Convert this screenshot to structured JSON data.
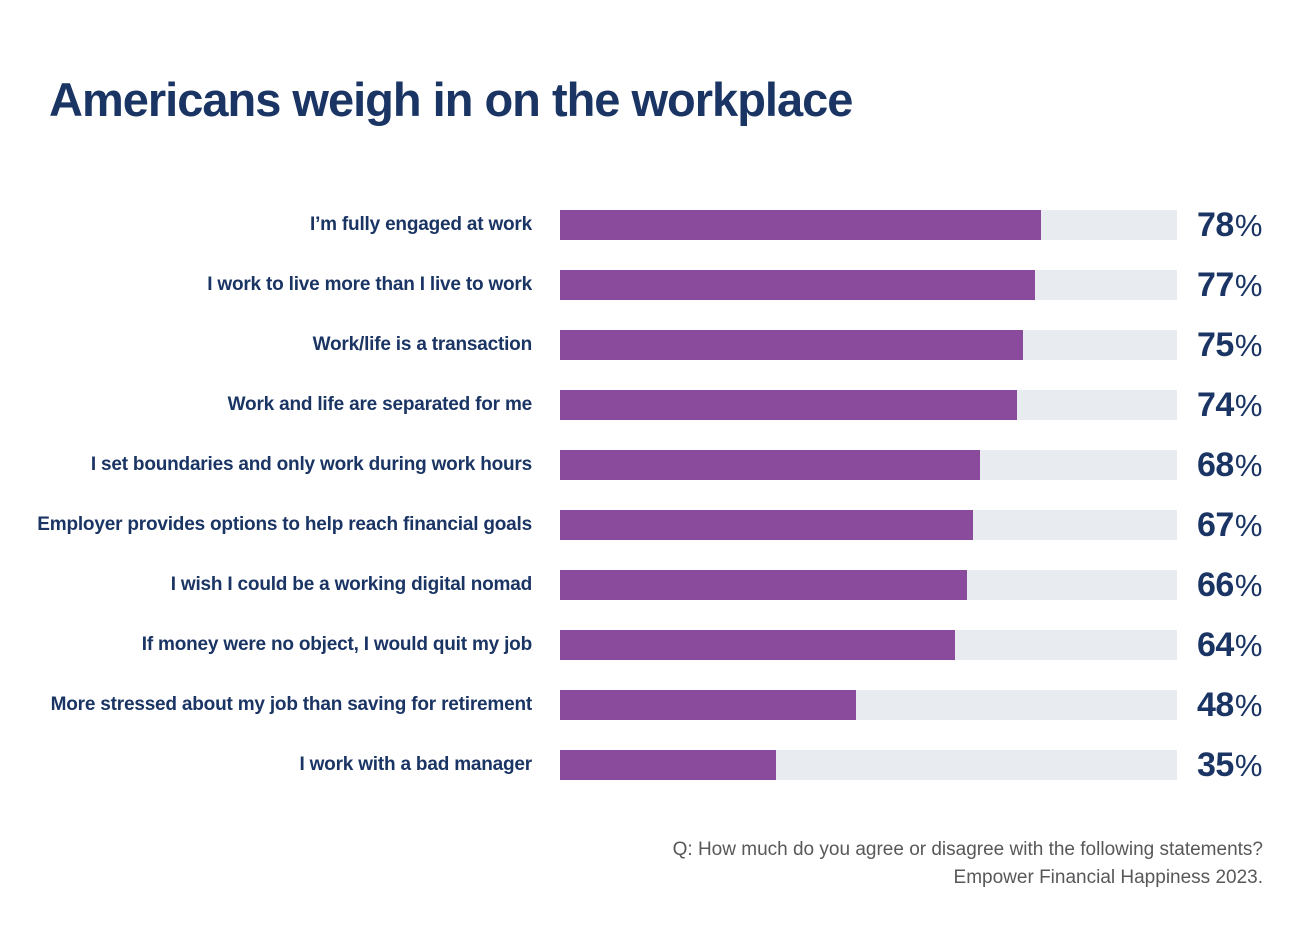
{
  "title": "Americans weigh in on the workplace",
  "chart_data": {
    "type": "bar",
    "orientation": "horizontal",
    "title": "Americans weigh in on the workplace",
    "categories": [
      "I’m fully engaged at work",
      "I work to live more than I live to work",
      "Work/life is a transaction",
      "Work and life are separated for me",
      "I set boundaries and only work during work hours",
      "Employer provides options to help reach financial goals",
      "I wish I could be a working digital nomad",
      "If money were no object, I would quit my job",
      "More stressed about my job than saving for retirement",
      "I work with a bad manager"
    ],
    "values": [
      78,
      77,
      75,
      74,
      68,
      67,
      66,
      64,
      48,
      35
    ],
    "value_suffix": "%",
    "xlim": [
      0,
      100
    ],
    "grid": false,
    "legend": false,
    "bar_color": "#8a4b9c",
    "track_color": "#e8ecf1",
    "label_position": "left",
    "value_position": "right"
  },
  "footer": {
    "question": "Q: How much do you agree or disagree with the following statements?",
    "source": "Empower Financial Happiness 2023."
  },
  "colors": {
    "navy": "#1a3464",
    "bar_fill": "#8a4b9c",
    "bar_track": "#e8ecf1",
    "footer_text": "#58585b",
    "background": "#ffffff"
  }
}
